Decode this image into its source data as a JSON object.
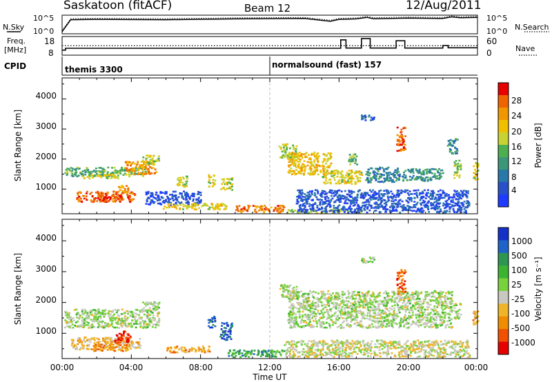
{
  "header": {
    "station": "Saskatoon (fitACF)",
    "beam": "Beam 12",
    "date": "12/Aug/2011"
  },
  "panel_labels": {
    "nsky": "N.Sky",
    "nsearch": "N.Search",
    "freq_line1": "Freq.",
    "freq_line2": "[MHz]",
    "nave": "Nave",
    "cpid": "CPID"
  },
  "chart_data": [
    {
      "type": "line",
      "name": "noise",
      "left_axis": {
        "label": "N.Sky",
        "ticks": [
          "10^5",
          "10^0"
        ]
      },
      "right_axis": {
        "label": "N.Search",
        "ticks": [
          "10^5",
          "10^0"
        ]
      },
      "x_hours": [
        0,
        0.5,
        2,
        6,
        10,
        14,
        15.5,
        16,
        17,
        17.6,
        18,
        20,
        22,
        22.5,
        23,
        24
      ],
      "nsky_level": [
        0.05,
        0.8,
        0.82,
        0.8,
        0.85,
        0.88,
        0.7,
        0.82,
        0.85,
        0.95,
        0.86,
        0.9,
        0.88,
        0.98,
        0.92,
        0.95
      ]
    },
    {
      "type": "line",
      "name": "frequency_nave",
      "left_axis": {
        "label": "Freq. [MHz]",
        "ticks": [
          "18",
          "8"
        ]
      },
      "right_axis": {
        "label": "Nave",
        "ticks": [
          "60",
          "0"
        ]
      },
      "steps_hours": [
        [
          0,
          0.2,
          10.3
        ],
        [
          0.2,
          16.1,
          11.5
        ],
        [
          16.1,
          16.4,
          16.8
        ],
        [
          16.4,
          17.3,
          11.6
        ],
        [
          17.3,
          17.8,
          17.6
        ],
        [
          17.8,
          19.3,
          11.6
        ],
        [
          19.3,
          19.8,
          16.2
        ],
        [
          19.8,
          22.0,
          11.6
        ],
        [
          22.0,
          22.3,
          13.2
        ],
        [
          22.3,
          24,
          11.8
        ]
      ],
      "nave_level": 13.1
    },
    {
      "type": "table",
      "name": "cpid",
      "segments": [
        {
          "start_hour": 0,
          "label": "themis 3300"
        },
        {
          "start_hour": 12,
          "label": "normalsound (fast) 157"
        }
      ]
    },
    {
      "type": "heatmap",
      "name": "power",
      "ylabel": "Slant Range [km]",
      "yticks": [
        1000,
        2000,
        3000,
        4000
      ],
      "ylim": [
        180,
        4700
      ],
      "colorbar": {
        "label": "Power [dB]",
        "ticks": [
          "4",
          "8",
          "12",
          "16",
          "20",
          "24",
          "28"
        ],
        "colors": [
          "#1e3cff",
          "#2850c8",
          "#2878aa",
          "#3c9678",
          "#4caf50",
          "#c8d232",
          "#f0c000",
          "#f09600",
          "#f06400",
          "#e60000"
        ]
      },
      "regions": [
        {
          "x": [
            0.1,
            4.8
          ],
          "y": [
            1450,
            1750
          ],
          "v": 0.42
        },
        {
          "x": [
            1.2,
            3.2
          ],
          "y": [
            1380,
            1540
          ],
          "v": 0.58
        },
        {
          "x": [
            3.6,
            5.4
          ],
          "y": [
            1500,
            1950
          ],
          "v": 0.75
        },
        {
          "x": [
            4.6,
            5.6
          ],
          "y": [
            1850,
            2150
          ],
          "v": 0.5
        },
        {
          "x": [
            0.8,
            4.2
          ],
          "y": [
            600,
            950
          ],
          "v": 0.85
        },
        {
          "x": [
            2.0,
            3.4
          ],
          "y": [
            600,
            820
          ],
          "v": 0.92
        },
        {
          "x": [
            3.2,
            3.8
          ],
          "y": [
            900,
            1150
          ],
          "v": 0.7
        },
        {
          "x": [
            4.8,
            8.0
          ],
          "y": [
            500,
            950
          ],
          "v": 0.12
        },
        {
          "x": [
            6.6,
            7.2
          ],
          "y": [
            1100,
            1500
          ],
          "v": 0.55
        },
        {
          "x": [
            8.4,
            8.8
          ],
          "y": [
            1100,
            1500
          ],
          "v": 0.6
        },
        {
          "x": [
            9.1,
            9.8
          ],
          "y": [
            1000,
            1400
          ],
          "v": 0.55
        },
        {
          "x": [
            5.8,
            9.5
          ],
          "y": [
            350,
            550
          ],
          "v": 0.6
        },
        {
          "x": [
            10.0,
            12.8
          ],
          "y": [
            250,
            480
          ],
          "v": 0.8
        },
        {
          "x": [
            12.8,
            17.5
          ],
          "y": [
            230,
            350
          ],
          "v": 0.5
        },
        {
          "x": [
            12.5,
            13.5
          ],
          "y": [
            2050,
            2550
          ],
          "v": 0.55
        },
        {
          "x": [
            13.0,
            15.5
          ],
          "y": [
            1500,
            2250
          ],
          "v": 0.65
        },
        {
          "x": [
            15.0,
            17.3
          ],
          "y": [
            1200,
            1650
          ],
          "v": 0.6
        },
        {
          "x": [
            16.5,
            17.0
          ],
          "y": [
            1800,
            2200
          ],
          "v": 0.45
        },
        {
          "x": [
            17.2,
            18.0
          ],
          "y": [
            3300,
            3500
          ],
          "v": 0.2
        },
        {
          "x": [
            17.5,
            19.5
          ],
          "y": [
            1250,
            1750
          ],
          "v": 0.3
        },
        {
          "x": [
            19.3,
            19.8
          ],
          "y": [
            2300,
            3100
          ],
          "v": 0.85
        },
        {
          "x": [
            19.6,
            22.0
          ],
          "y": [
            1300,
            1700
          ],
          "v": 0.35
        },
        {
          "x": [
            22.2,
            22.8
          ],
          "y": [
            2200,
            2700
          ],
          "v": 0.3
        },
        {
          "x": [
            22.6,
            23.0
          ],
          "y": [
            1400,
            2000
          ],
          "v": 0.55
        },
        {
          "x": [
            23.7,
            24.0
          ],
          "y": [
            1300,
            1900
          ],
          "v": 0.6
        },
        {
          "x": [
            13.5,
            23.5
          ],
          "y": [
            250,
            1000
          ],
          "v": 0.15
        }
      ]
    },
    {
      "type": "heatmap",
      "name": "velocity",
      "xlabel": "Time UT",
      "xticks": [
        "00:00",
        "04:00",
        "08:00",
        "12:00",
        "16:00",
        "20:00",
        "00:00"
      ],
      "ylabel": "Slant Range [km]",
      "yticks": [
        1000,
        2000,
        3000,
        4000
      ],
      "ylim": [
        180,
        4700
      ],
      "colorbar": {
        "label": "Velocity [m s⁻¹]",
        "ticks": [
          "1000",
          "500",
          "100",
          "25",
          "-25",
          "-100",
          "-500",
          "-1000"
        ],
        "colors": [
          "#1432c8",
          "#1e64c8",
          "#2d9650",
          "#3cb432",
          "#78d23c",
          "#c8c8c0",
          "#f0b428",
          "#f08c00",
          "#f05000",
          "#e60000"
        ]
      },
      "regions": [
        {
          "x": [
            0.1,
            5.6
          ],
          "y": [
            1200,
            1800
          ],
          "v": 0.5
        },
        {
          "x": [
            0.5,
            4.5
          ],
          "y": [
            500,
            900
          ],
          "v": 0.65
        },
        {
          "x": [
            1.8,
            3.8
          ],
          "y": [
            450,
            750
          ],
          "v": 0.72
        },
        {
          "x": [
            3.0,
            3.9
          ],
          "y": [
            700,
            1100
          ],
          "v": 0.92
        },
        {
          "x": [
            4.6,
            5.6
          ],
          "y": [
            1750,
            2050
          ],
          "v": 0.5
        },
        {
          "x": [
            6.0,
            8.5
          ],
          "y": [
            400,
            600
          ],
          "v": 0.7
        },
        {
          "x": [
            8.4,
            8.8
          ],
          "y": [
            1200,
            1600
          ],
          "v": 0.15
        },
        {
          "x": [
            9.1,
            9.8
          ],
          "y": [
            800,
            1400
          ],
          "v": 0.12
        },
        {
          "x": [
            9.5,
            12.8
          ],
          "y": [
            250,
            480
          ],
          "v": 0.3
        },
        {
          "x": [
            13.0,
            22.5
          ],
          "y": [
            1200,
            2400
          ],
          "v": 0.5
        },
        {
          "x": [
            12.5,
            13.5
          ],
          "y": [
            2200,
            2600
          ],
          "v": 0.5
        },
        {
          "x": [
            17.2,
            18.0
          ],
          "y": [
            3300,
            3500
          ],
          "v": 0.5
        },
        {
          "x": [
            19.3,
            19.8
          ],
          "y": [
            2300,
            3100
          ],
          "v": 0.82
        },
        {
          "x": [
            22.6,
            23.0
          ],
          "y": [
            1500,
            2000
          ],
          "v": 0.5
        },
        {
          "x": [
            23.7,
            24.0
          ],
          "y": [
            1300,
            1800
          ],
          "v": 0.7
        },
        {
          "x": [
            12.8,
            23.5
          ],
          "y": [
            250,
            800
          ],
          "v": 0.55
        }
      ]
    }
  ]
}
